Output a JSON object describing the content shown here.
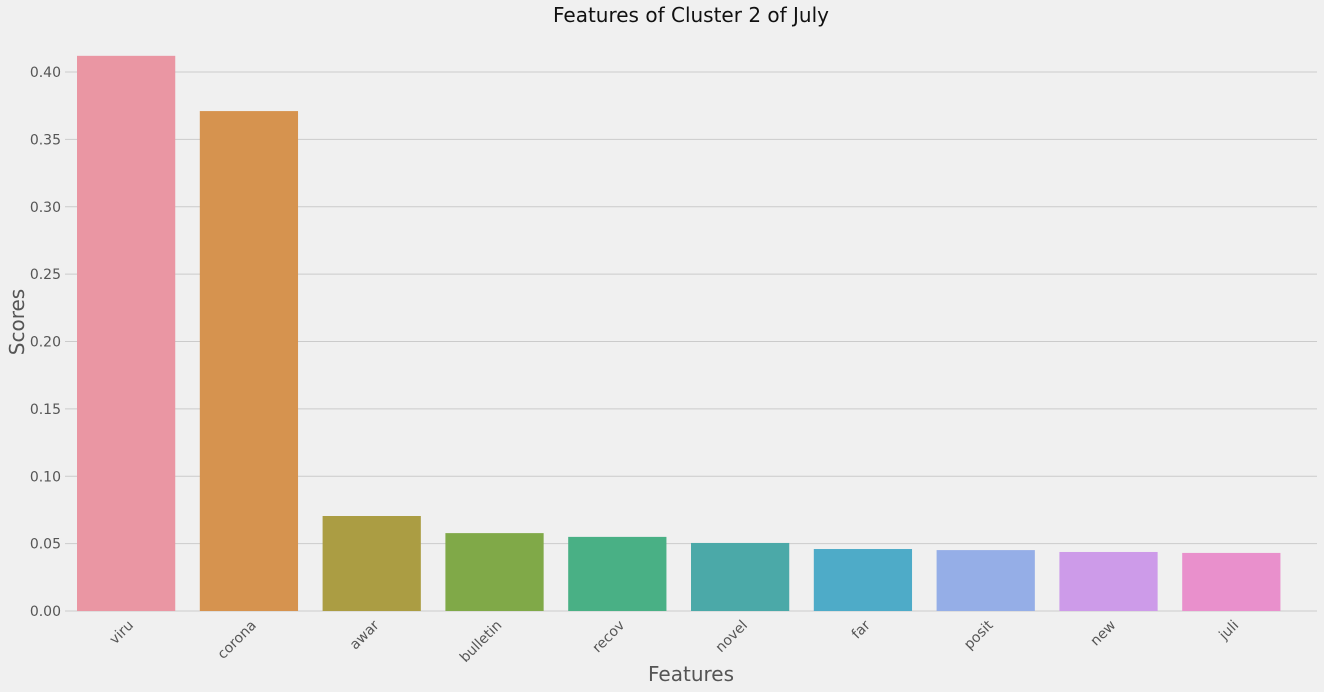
{
  "chart_data": {
    "type": "bar",
    "title": "Features of Cluster 2 of July",
    "xlabel": "Features",
    "ylabel": "Scores",
    "categories": [
      "viru",
      "corona",
      "awar",
      "bulletin",
      "recov",
      "novel",
      "far",
      "posit",
      "new",
      "juli"
    ],
    "values": [
      0.412,
      0.371,
      0.0705,
      0.0578,
      0.055,
      0.0505,
      0.046,
      0.0452,
      0.0438,
      0.0431
    ],
    "bar_colors": [
      "#ea96a3",
      "#d6934f",
      "#ab9d43",
      "#80a948",
      "#49b085",
      "#4ba9a8",
      "#4eabc8",
      "#95aee7",
      "#cd9be9",
      "#e990cc"
    ],
    "ylim": [
      0,
      0.42
    ],
    "yticks": [
      0.0,
      0.05,
      0.1,
      0.15,
      0.2,
      0.25,
      0.3,
      0.35,
      0.4
    ],
    "ytick_labels": [
      "0.00",
      "0.05",
      "0.10",
      "0.15",
      "0.20",
      "0.25",
      "0.30",
      "0.35",
      "0.40"
    ],
    "grid": true,
    "grid_axis": "y",
    "style": "fivethirtyeight"
  }
}
